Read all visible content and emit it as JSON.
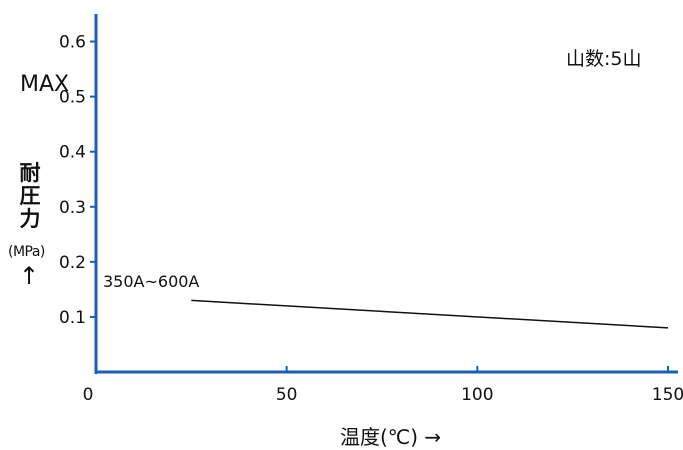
{
  "chart_data": {
    "type": "line",
    "annotation": "山数:5山",
    "ylabel_top": "MAX",
    "ylabel_kanji": "耐圧力",
    "ylabel_unit": "(MPa)",
    "ylabel_arrow": "↑",
    "xlabel": "温度(℃) →",
    "xlim": [
      0,
      150
    ],
    "ylim": [
      0,
      0.65
    ],
    "x_ticks": [
      "0",
      "50",
      "100",
      "150"
    ],
    "y_ticks": [
      "0.1",
      "0.2",
      "0.3",
      "0.4",
      "0.5",
      "0.6"
    ],
    "series": [
      {
        "name": "350A~600A",
        "x": [
          25,
          150
        ],
        "y": [
          0.13,
          0.08
        ]
      }
    ]
  },
  "colors": {
    "axis": "#1a5fb4",
    "series": "#111111",
    "text": "#111111"
  }
}
